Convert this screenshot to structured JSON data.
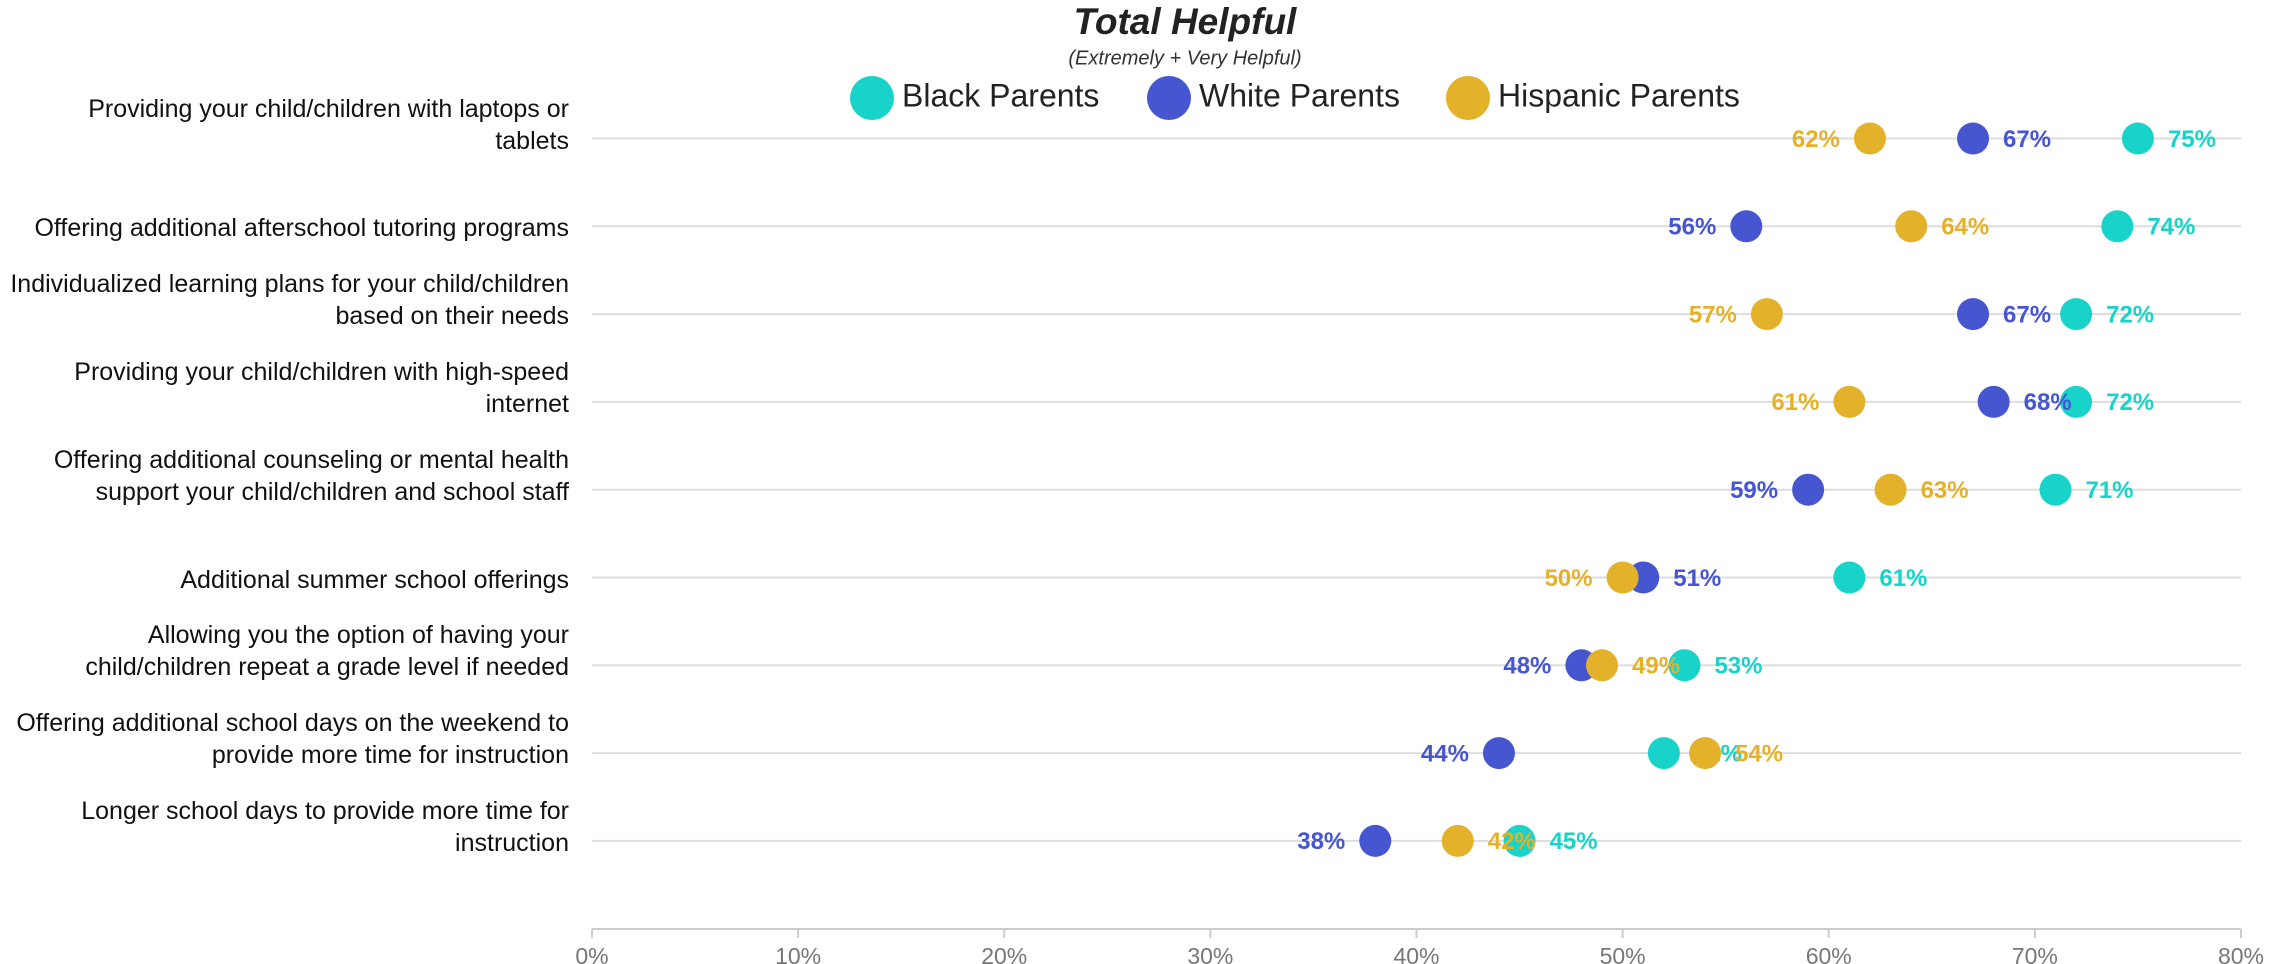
{
  "chart_data": {
    "type": "dot",
    "title": "Total Helpful",
    "subtitle": "(Extremely + Very Helpful)",
    "categories": [
      "Providing your child/children with laptops or tablets",
      "Offering additional afterschool tutoring programs",
      "Individualized learning plans for your child/children based on their needs",
      "Providing your child/children with high-speed internet",
      "Offering additional counseling or mental health support your child/children and school staff",
      "Additional summer school offerings",
      "Allowing you the option of having your child/children repeat a grade level if needed",
      "Offering additional school days on the weekend to provide more time for instruction",
      "Longer school days to provide more time for instruction"
    ],
    "series": [
      {
        "name": "Black Parents",
        "color": "#17d3c9",
        "values": [
          75,
          74,
          72,
          72,
          71,
          61,
          53,
          52,
          45
        ],
        "value_labels": [
          "75%",
          "74%",
          "72%",
          "72%",
          "71%",
          "61%",
          "53%",
          "52%",
          "45%"
        ]
      },
      {
        "name": "White Parents",
        "color": "#4655d0",
        "values": [
          67,
          56,
          67,
          68,
          59,
          51,
          48,
          44,
          38
        ],
        "value_labels": [
          "67%",
          "56%",
          "67%",
          "68%",
          "59%",
          "51%",
          "48%",
          "44%",
          "38%"
        ]
      },
      {
        "name": "Hispanic Parents",
        "color": "#e3b12a",
        "values": [
          62,
          64,
          57,
          61,
          63,
          50,
          49,
          54,
          42
        ],
        "value_labels": [
          "62%",
          "64%",
          "57%",
          "61%",
          "63%",
          "50%",
          "49%",
          "54%",
          "42%"
        ]
      }
    ],
    "xlim": [
      0,
      80
    ],
    "xticks": [
      {
        "value": 0,
        "label": "0%"
      },
      {
        "value": 10,
        "label": "10%"
      },
      {
        "value": 20,
        "label": "20%"
      },
      {
        "value": 30,
        "label": "30%"
      },
      {
        "value": 40,
        "label": "40%"
      },
      {
        "value": 50,
        "label": "50%"
      },
      {
        "value": 60,
        "label": "60%"
      },
      {
        "value": 70,
        "label": "70%"
      },
      {
        "value": 80,
        "label": "80%"
      }
    ],
    "legend": "top"
  }
}
